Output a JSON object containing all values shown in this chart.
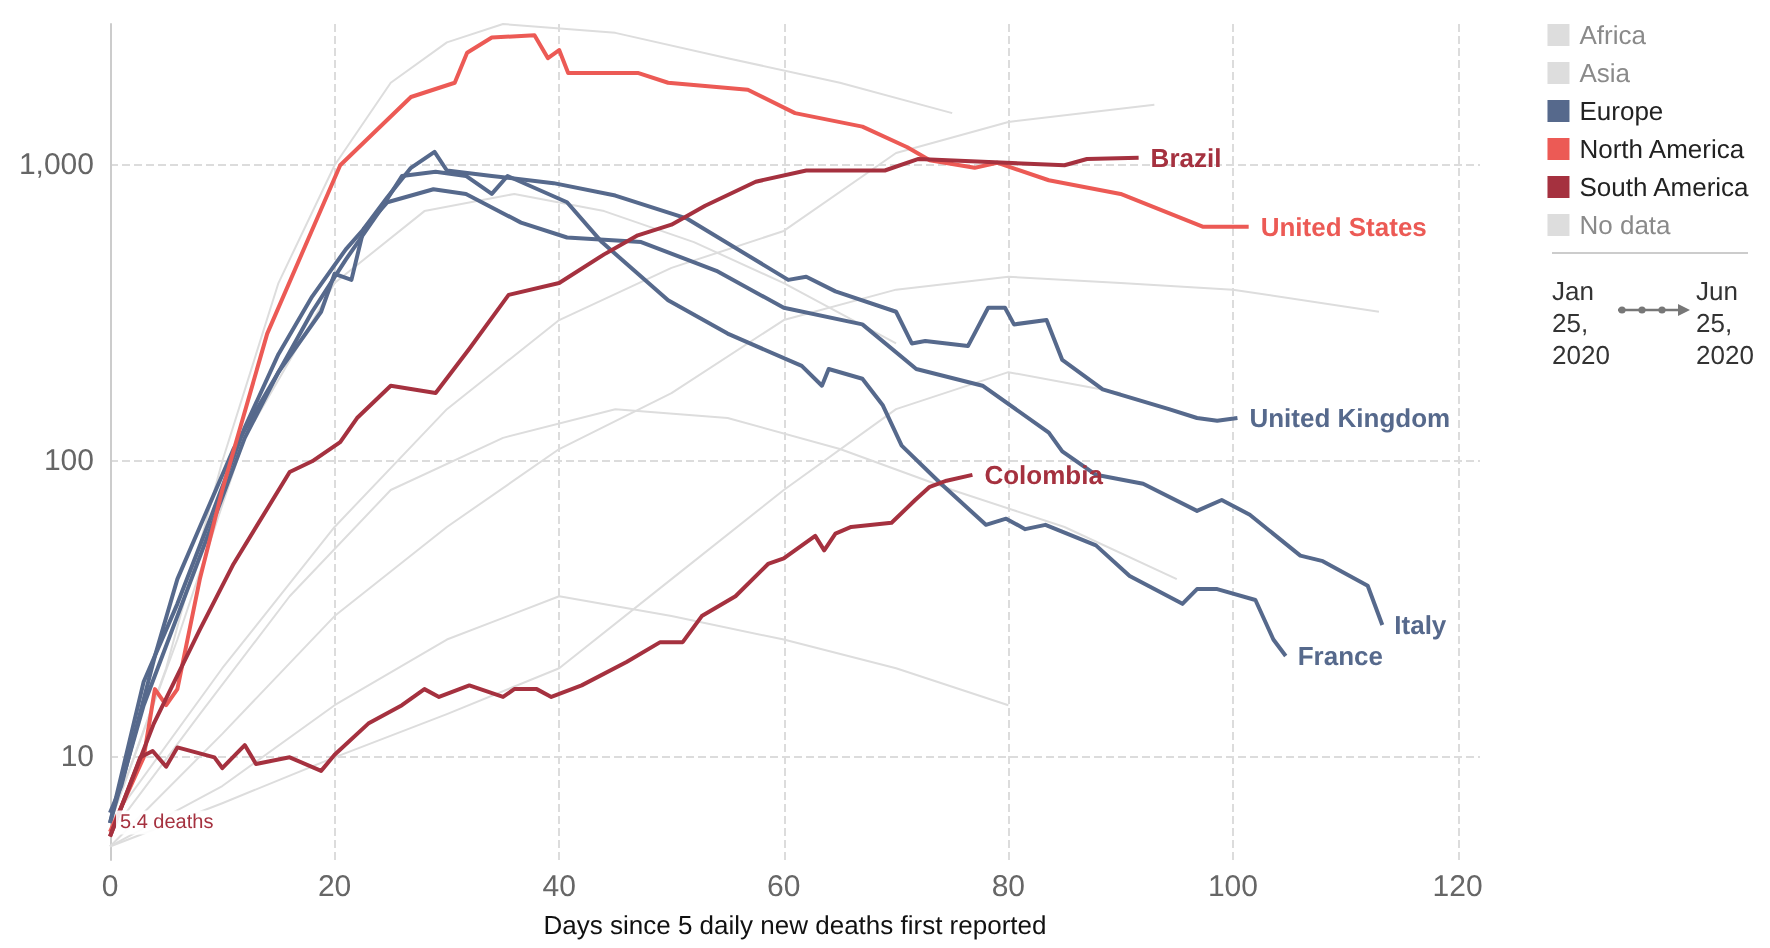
{
  "chart_data": {
    "type": "line",
    "xlabel": "Days since 5 daily new deaths first reported",
    "xlim": [
      0,
      122
    ],
    "xticks": [
      0,
      20,
      40,
      60,
      80,
      100,
      120
    ],
    "ylim": [
      4.5,
      3000
    ],
    "yticks": [
      10,
      100,
      {
        "value": 1000,
        "label": "1,000"
      }
    ],
    "log": "y",
    "grid": true,
    "legend": "top right",
    "marker": "none",
    "line_style": "solid",
    "series": [
      {
        "name": "Africa",
        "color": "#dddddd",
        "x": [
          0,
          5,
          10,
          15,
          20,
          25,
          30,
          35,
          45,
          55,
          65,
          75
        ],
        "values": [
          6,
          20,
          100,
          400,
          1000,
          1900,
          2600,
          3000,
          2800,
          2300,
          1900,
          1500
        ]
      },
      {
        "name": "Asia",
        "color": "#dddddd",
        "x": [
          0,
          10,
          20,
          30,
          40,
          50,
          60,
          70,
          80,
          93
        ],
        "values": [
          6,
          20,
          60,
          150,
          300,
          450,
          600,
          1100,
          1400,
          1600
        ]
      },
      {
        "name": "Europe",
        "color": "#56698c",
        "x": [
          0,
          1,
          4,
          6,
          8,
          11,
          15,
          18.8,
          20,
          21.5,
          22.6,
          24.7,
          26.8,
          28.9,
          30,
          34,
          39.5,
          45,
          51.4,
          60.4,
          62,
          64.6,
          70,
          71.4,
          72.6,
          76.4,
          78.2,
          79.7,
          80.5,
          83.4,
          84.8,
          88.4,
          94.3,
          96.8,
          98.6,
          100.4
        ],
        "values": [
          6.5,
          8,
          22,
          40,
          60,
          110,
          200,
          320,
          430,
          410,
          610,
          780,
          980,
          1110,
          960,
          920,
          870,
          790,
          660,
          410,
          420,
          375,
          320,
          250,
          255,
          245,
          330,
          330,
          290,
          300,
          220,
          175,
          150,
          140,
          137,
          140
        ]
      },
      {
        "color": "#56698c",
        "x": [
          0,
          3,
          6,
          9,
          12,
          15,
          18,
          21,
          24.7,
          28.8,
          31.7,
          36.6,
          40.7,
          47.3,
          54,
          60,
          67,
          71.8,
          77.7,
          83.6,
          84.8,
          87.8,
          92,
          96.8,
          99,
          101.5,
          106,
          108,
          112,
          113.3
        ],
        "values": [
          6,
          18,
          33,
          65,
          130,
          230,
          360,
          520,
          750,
          830,
          800,
          640,
          570,
          550,
          440,
          330,
          290,
          205,
          180,
          125,
          108,
          90,
          84,
          68,
          74,
          66,
          48,
          46,
          38,
          28
        ]
      },
      {
        "color": "#56698c",
        "x": [
          0,
          3,
          6,
          9,
          12,
          15,
          18,
          21,
          24,
          26,
          29,
          31.7,
          34,
          35.4,
          40.7,
          43.8,
          49.7,
          55,
          61.6,
          63.4,
          64,
          67,
          68.8,
          70.5,
          74,
          78,
          79.8,
          81.5,
          83.3,
          87.8,
          90.8,
          95.5,
          96.8,
          98.6,
          102,
          103.6,
          104.7
        ],
        "values": [
          6,
          15,
          30,
          60,
          120,
          200,
          320,
          480,
          700,
          920,
          950,
          920,
          800,
          920,
          750,
          550,
          350,
          270,
          210,
          180,
          205,
          190,
          155,
          113,
          84,
          61,
          64,
          59,
          61,
          52,
          41,
          33,
          37,
          37,
          34,
          25,
          22
        ]
      },
      {
        "name": "North America",
        "color": "#ec5a55",
        "x": [
          0,
          3,
          4,
          5,
          6,
          8,
          10,
          14,
          20.5,
          26.8,
          30.7,
          31.8,
          34,
          37.8,
          39,
          40,
          40.8,
          47,
          49.7,
          56.8,
          61,
          67,
          71,
          73,
          77,
          79,
          83.6,
          90,
          97.3,
          101.4
        ],
        "values": [
          5.6,
          10,
          17,
          15,
          17,
          40,
          80,
          270,
          1000,
          1700,
          1900,
          2400,
          2700,
          2750,
          2300,
          2450,
          2050,
          2050,
          1900,
          1800,
          1500,
          1350,
          1150,
          1040,
          980,
          1020,
          890,
          800,
          620,
          620
        ]
      },
      {
        "name": "South America",
        "color": "#a5313f",
        "x": [
          0,
          3.9,
          8,
          11,
          16,
          18,
          20.5,
          22,
          25,
          29,
          32,
          35.5,
          40,
          44,
          47,
          50,
          53,
          57.5,
          62,
          69,
          72,
          85,
          87,
          91.6
        ],
        "values": [
          5.4,
          13,
          27,
          45,
          92,
          100,
          116,
          140,
          180,
          170,
          240,
          365,
          400,
          500,
          580,
          630,
          730,
          880,
          960,
          960,
          1050,
          1000,
          1050,
          1060
        ]
      },
      {
        "color": "#a5313f",
        "x": [
          0,
          2.7,
          3.8,
          5,
          6,
          9.3,
          10,
          12,
          13,
          16,
          18.8,
          20,
          23,
          26,
          28,
          29.3,
          32,
          35,
          36,
          38,
          39.3,
          42,
          46,
          49,
          51,
          52.7,
          55.7,
          58.6,
          60,
          62.8,
          63.6,
          64.6,
          66,
          69.6,
          71.7,
          73,
          74.5,
          76.8
        ],
        "values": [
          5.4,
          10,
          10.5,
          9.3,
          10.8,
          10,
          9.2,
          11,
          9.5,
          10,
          9,
          10.2,
          13,
          15,
          17,
          16,
          17.5,
          16,
          17,
          17,
          16,
          17.5,
          21,
          24.5,
          24.5,
          30,
          35,
          45,
          47,
          56,
          50,
          57,
          60,
          62,
          74,
          82,
          86,
          90
        ]
      },
      {
        "name": "No data",
        "color": "#dddddd",
        "x": [
          0,
          10,
          20,
          30,
          40,
          50,
          60,
          70,
          80,
          90,
          100,
          113
        ],
        "values": [
          5,
          12,
          30,
          60,
          110,
          170,
          300,
          380,
          420,
          400,
          380,
          320
        ]
      },
      {
        "color": "#dddddd",
        "x": [
          0,
          10,
          20,
          30,
          40,
          50,
          60,
          70,
          80
        ],
        "values": [
          5,
          8,
          15,
          25,
          35,
          30,
          25,
          20,
          15
        ]
      },
      {
        "color": "#dddddd",
        "x": [
          0,
          8,
          16,
          25,
          35,
          45,
          55,
          65,
          75,
          85,
          95
        ],
        "values": [
          5.5,
          14,
          35,
          80,
          120,
          150,
          140,
          110,
          80,
          60,
          40
        ]
      },
      {
        "color": "#dddddd",
        "x": [
          0,
          10,
          20,
          30,
          40,
          50,
          60,
          70,
          80,
          90
        ],
        "values": [
          5,
          7,
          10,
          14,
          20,
          40,
          80,
          150,
          200,
          170
        ]
      },
      {
        "color": "#dddddd",
        "x": [
          0,
          6,
          12,
          20,
          28,
          36,
          44,
          52,
          60,
          70
        ],
        "values": [
          6,
          25,
          120,
          400,
          700,
          800,
          700,
          550,
          400,
          250
        ]
      }
    ],
    "annotations": [
      {
        "text": "Brazil",
        "x": 91.6,
        "y": 1060
      },
      {
        "text": "United States",
        "x": 101.4,
        "y": 620
      },
      {
        "text": "United Kingdom",
        "x": 100.4,
        "y": 140
      },
      {
        "text": "Colombia",
        "x": 76.8,
        "y": 90
      },
      {
        "text": "Italy",
        "x": 113.3,
        "y": 28
      },
      {
        "text": "France",
        "x": 104.7,
        "y": 22
      },
      {
        "text": "5.4 deaths",
        "x": 0,
        "y": 5.4
      },
      "Jan 25, 2020",
      "Jun 25, 2020"
    ]
  }
}
